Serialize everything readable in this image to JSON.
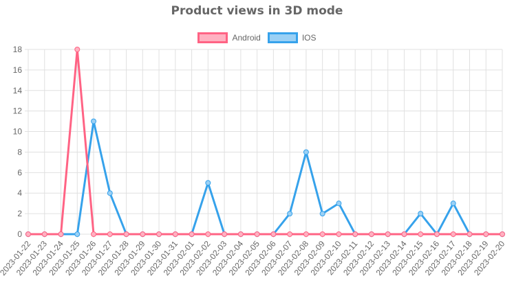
{
  "chart_data": {
    "type": "line",
    "title": "Product views in 3D mode",
    "xlabel": "",
    "ylabel": "",
    "ylim": [
      0,
      18
    ],
    "yticks": [
      0,
      2,
      4,
      6,
      8,
      10,
      12,
      14,
      16,
      18
    ],
    "grid": true,
    "legend_position": "top",
    "categories": [
      "2023-01-22",
      "2023-01-23",
      "2023-01-24",
      "2023-01-25",
      "2023-01-26",
      "2023-01-27",
      "2023-01-28",
      "2023-01-29",
      "2023-01-30",
      "2023-01-31",
      "2023-02-01",
      "2023-02-02",
      "2023-02-03",
      "2023-02-04",
      "2023-02-05",
      "2023-02-06",
      "2023-02-07",
      "2023-02-08",
      "2023-02-09",
      "2023-02-10",
      "2023-02-11",
      "2023-02-12",
      "2023-02-13",
      "2023-02-14",
      "2023-02-15",
      "2023-02-16",
      "2023-02-17",
      "2023-02-18",
      "2023-02-19",
      "2023-02-20"
    ],
    "series": [
      {
        "name": "Android",
        "color": "#ff6384",
        "fill": "#ffb1c1",
        "values": [
          0,
          0,
          0,
          18,
          0,
          0,
          0,
          0,
          0,
          0,
          0,
          0,
          0,
          0,
          0,
          0,
          0,
          0,
          0,
          0,
          0,
          0,
          0,
          0,
          0,
          0,
          0,
          0,
          0,
          0
        ]
      },
      {
        "name": "IOS",
        "color": "#36a2eb",
        "fill": "#9ad0f5",
        "values": [
          0,
          0,
          0,
          0,
          11,
          4,
          0,
          0,
          0,
          0,
          0,
          5,
          0,
          0,
          0,
          0,
          2,
          8,
          2,
          3,
          0,
          0,
          0,
          0,
          2,
          0,
          3,
          0,
          0,
          0
        ]
      }
    ]
  }
}
